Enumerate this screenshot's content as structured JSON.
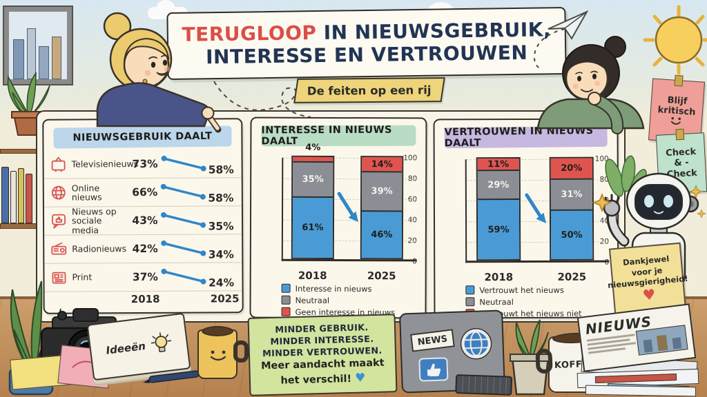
{
  "title": {
    "word_highlight": "TERUGLOOP",
    "line1_rest": " IN NIEUWSGEBRUIK,",
    "line2": "INTERESSE EN VERTROUWEN",
    "ribbon": "De feiten op een rij"
  },
  "colors": {
    "accent_red": "#db4f48",
    "title_navy": "#223454",
    "bar_blue": "#4a9bd5",
    "bar_gray": "#8b8e94",
    "bar_red": "#e0544f",
    "slope_blue": "#2f86c9",
    "header_usage_bg": "#bcd6eb",
    "header_interest_bg": "#b9dcc4",
    "header_trust_bg": "#c6b8e0"
  },
  "usage_panel": {
    "header": "NIEUWSGEBRUIK DAALT",
    "rows": [
      {
        "icon": "tv-icon",
        "label": "Televisienieuws",
        "from": "73%",
        "to": "58%"
      },
      {
        "icon": "globe-icon",
        "label": "Online nieuws",
        "from": "66%",
        "to": "58%"
      },
      {
        "icon": "social-media-icon",
        "label": "Nieuws op sociale media",
        "from": "43%",
        "to": "35%"
      },
      {
        "icon": "radio-icon",
        "label": "Radionieuws",
        "from": "42%",
        "to": "34%"
      },
      {
        "icon": "print-icon",
        "label": "Print",
        "from": "37%",
        "to": "24%"
      }
    ],
    "year_from": "2018",
    "year_to": "2025"
  },
  "interest_panel": {
    "header": "INTERESSE IN NIEUWS DAALT",
    "y_ticks": [
      "100",
      "80",
      "60",
      "40",
      "20",
      "0"
    ],
    "bar_2018": {
      "year": "2018",
      "blue_label": "61%",
      "gray_label": "35%",
      "red_label": "4%"
    },
    "bar_2025": {
      "year": "2025",
      "blue_label": "46%",
      "gray_label": "39%",
      "red_label": "14%"
    },
    "legend": [
      {
        "label": "Interesse in nieuws"
      },
      {
        "label": "Neutraal"
      },
      {
        "label": "Geen interesse in nieuws"
      }
    ]
  },
  "trust_panel": {
    "header": "VERTROUWEN IN NIEUWS DAALT",
    "y_ticks": [
      "100",
      "80",
      "60",
      "40",
      "20",
      "0"
    ],
    "bar_2018": {
      "year": "2018",
      "blue_label": "59%",
      "gray_label": "29%",
      "red_label": "11%"
    },
    "bar_2025": {
      "year": "2025",
      "blue_label": "50%",
      "gray_label": "31%",
      "red_label": "20%"
    },
    "legend": [
      {
        "label": "Vertrouwt het nieuws"
      },
      {
        "label": "Neutraal"
      },
      {
        "label": "Vertrouwt het nieuws niet"
      }
    ]
  },
  "chart_data": [
    {
      "type": "line",
      "variant": "slopegraph",
      "title": "NIEUWSGEBRUIK DAALT",
      "x": [
        "2018",
        "2025"
      ],
      "unit": "%",
      "series": [
        {
          "name": "Televisienieuws",
          "values": [
            73,
            58
          ]
        },
        {
          "name": "Online nieuws",
          "values": [
            66,
            58
          ]
        },
        {
          "name": "Nieuws op sociale media",
          "values": [
            43,
            35
          ]
        },
        {
          "name": "Radionieuws",
          "values": [
            42,
            34
          ]
        },
        {
          "name": "Print",
          "values": [
            37,
            24
          ]
        }
      ]
    },
    {
      "type": "bar",
      "stacked": true,
      "title": "INTERESSE IN NIEUWS DAALT",
      "categories": [
        "2018",
        "2025"
      ],
      "ylim": [
        0,
        100
      ],
      "unit": "%",
      "series": [
        {
          "name": "Interesse in nieuws",
          "color": "#4a9bd5",
          "values": [
            61,
            46
          ]
        },
        {
          "name": "Neutraal",
          "color": "#8b8e94",
          "values": [
            35,
            39
          ]
        },
        {
          "name": "Geen interesse in nieuws",
          "color": "#e0544f",
          "values": [
            4,
            14
          ]
        }
      ]
    },
    {
      "type": "bar",
      "stacked": true,
      "title": "VERTROUWEN IN NIEUWS DAALT",
      "categories": [
        "2018",
        "2025"
      ],
      "ylim": [
        0,
        100
      ],
      "unit": "%",
      "series": [
        {
          "name": "Vertrouwt het nieuws",
          "color": "#4a9bd5",
          "values": [
            59,
            50
          ]
        },
        {
          "name": "Neutraal",
          "color": "#8b8e94",
          "values": [
            29,
            31
          ]
        },
        {
          "name": "Vertrouwt het nieuws niet",
          "color": "#e0544f",
          "values": [
            11,
            20
          ]
        }
      ]
    }
  ],
  "stickies": {
    "pink_sticky": {
      "line1": "Blijf",
      "line2": "kritisch"
    },
    "check_sticky": {
      "line1": "Check",
      "line2": "& -",
      "line3": "Check"
    },
    "green_note": {
      "line1": "MINDER GEBRUIK.",
      "line2": "MINDER INTERESSE.",
      "line3": "MINDER VERTROUWEN.",
      "line4": "Meer aandacht maakt",
      "line5": "het verschil!"
    },
    "robot_sign": {
      "line1": "Dankjewel",
      "line2": "voor je",
      "line3": "nieuwsgierigheid!"
    }
  },
  "desk_items": {
    "news_sticker": "NEWS",
    "coffee_mug": "KOFFIE",
    "newspaper_title": "NIEUWS",
    "notebook_label": "Ideeën"
  }
}
